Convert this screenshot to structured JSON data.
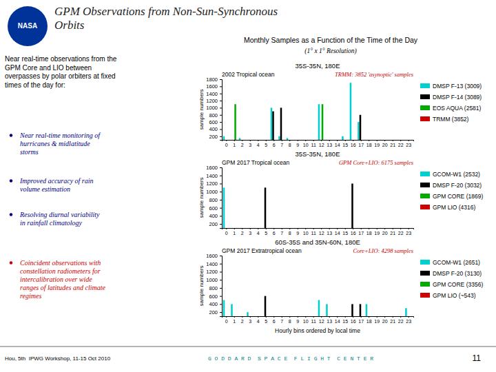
{
  "logo": {
    "text": "NASA",
    "color": "#003399"
  },
  "title": "GPM Observations from Non-Sun-Synchronous\nOrbits",
  "subtitle": "Near real-time observations from the GPM Core and LIO between overpasses by polar orbiters at fixed times of the day for:",
  "bullets": [
    {
      "text": "Near real-time monitoring of\nhurricanes & midlatitude\nstorms",
      "color": "#000080"
    },
    {
      "text": "Improved accuracy of rain\nvolume estimation",
      "color": "#000080"
    },
    {
      "text": "Resolving diurnal variability\nin rainfall climatology",
      "color": "#000080"
    },
    {
      "text": "Coincident observations with\nconstellation radiometers for\nintercalibration over wide\nranges of latitudes and climate\nregimes",
      "color": "#cc0000"
    }
  ],
  "panel_title": "Monthly Samples as a Function of the Time of the Day",
  "panel_subtitle": "(1° x 1° Resolution)",
  "footer": {
    "left": "Hou, 5th  IPWG Workshop, 11-15 Oct 2010",
    "right": "G O D D A R D  S P A C E  F L I G H T  C E N T E R",
    "right_color": "#008080",
    "slide_number": "11"
  },
  "chart_data": [
    {
      "type": "bar",
      "title": "35S-35N, 180E",
      "annotations": [
        {
          "text": "2002 Tropical ocean"
        },
        {
          "text": "TRMM: 3852 'asynoptic' samples",
          "color": "#cc0000"
        }
      ],
      "y_label": "sample numbers",
      "categories": [
        "0",
        "1",
        "2",
        "3",
        "4",
        "5",
        "6",
        "7",
        "8",
        "9",
        "10",
        "11",
        "12",
        "13",
        "14",
        "15",
        "16",
        "17",
        "18",
        "19",
        "20",
        "21",
        "22",
        "23"
      ],
      "series": [
        {
          "name": "DMSP F-13 (3009)",
          "color": "#00cfcf",
          "values": [
            200,
            100,
            150,
            100,
            100,
            100,
            1000,
            200,
            150,
            100,
            100,
            100,
            1100,
            100,
            100,
            200,
            1700,
            600,
            100,
            100,
            100,
            100,
            100,
            100
          ]
        },
        {
          "name": "DMSP F-14 (3089)",
          "color": "#000000",
          "values": [
            100,
            100,
            100,
            100,
            100,
            100,
            900,
            1000,
            100,
            100,
            100,
            100,
            100,
            100,
            100,
            100,
            100,
            800,
            100,
            100,
            100,
            100,
            100,
            100
          ]
        },
        {
          "name": "EOS AQUA (2581)",
          "color": "#00aa00",
          "values": [
            100,
            1100,
            100,
            100,
            100,
            100,
            100,
            100,
            100,
            100,
            100,
            100,
            1100,
            100,
            100,
            100,
            100,
            100,
            100,
            100,
            100,
            100,
            100,
            100
          ]
        },
        {
          "name": "TRMM (3852)",
          "color": "#cc0000",
          "values": [
            100,
            100,
            100,
            100,
            100,
            100,
            100,
            100,
            100,
            100,
            100,
            100,
            100,
            100,
            100,
            100,
            100,
            100,
            100,
            100,
            100,
            100,
            100,
            100
          ]
        }
      ],
      "ylim": [
        100,
        1800
      ],
      "yticks": [
        200,
        400,
        600,
        800,
        1000,
        1200,
        1400,
        1600,
        1800
      ],
      "grid": false
    },
    {
      "type": "bar",
      "title": "35S-35N, 180E",
      "annotations": [
        {
          "text": "GPM 2017 Tropical ocean"
        },
        {
          "text": "GPM Core+LIO: 6175 samples",
          "color": "#cc0000"
        }
      ],
      "y_label": "sample numbers",
      "categories": [
        "0",
        "1",
        "2",
        "3",
        "4",
        "5",
        "6",
        "7",
        "8",
        "9",
        "10",
        "11",
        "12",
        "13",
        "14",
        "15",
        "16",
        "17",
        "18",
        "19",
        "20",
        "21",
        "22",
        "23"
      ],
      "series": [
        {
          "name": "GCOM-W1 (2532)",
          "color": "#00cfcf",
          "values": [
            1100,
            100,
            100,
            100,
            100,
            100,
            100,
            100,
            100,
            100,
            100,
            100,
            100,
            100,
            100,
            100,
            100,
            100,
            100,
            100,
            100,
            100,
            100,
            100
          ]
        },
        {
          "name": "DMSP F-20 (3032)",
          "color": "#000000",
          "values": [
            100,
            100,
            100,
            100,
            100,
            1100,
            100,
            100,
            100,
            100,
            100,
            100,
            100,
            100,
            100,
            100,
            1200,
            100,
            100,
            100,
            100,
            100,
            100,
            100
          ]
        },
        {
          "name": "GPM CORE (1869)",
          "color": "#00aa00",
          "values": [
            100,
            100,
            100,
            100,
            100,
            100,
            100,
            100,
            100,
            100,
            100,
            100,
            100,
            100,
            100,
            100,
            100,
            100,
            100,
            100,
            100,
            100,
            100,
            100
          ]
        },
        {
          "name": "GPM LIO (4316)",
          "color": "#cc0000",
          "values": [
            100,
            100,
            100,
            100,
            100,
            100,
            100,
            100,
            100,
            100,
            100,
            100,
            100,
            100,
            100,
            100,
            100,
            100,
            100,
            100,
            100,
            100,
            100,
            100
          ]
        }
      ],
      "ylim": [
        100,
        1600
      ],
      "yticks": [
        200,
        400,
        600,
        800,
        1000,
        1200,
        1400,
        1600
      ],
      "grid": false
    },
    {
      "type": "bar",
      "title": "60S-35S and 35N-60N, 180E",
      "annotations": [
        {
          "text": "GPM 2017 Extratropical ocean"
        },
        {
          "text": "Core+LIO: 4298 samples",
          "color": "#cc0000"
        }
      ],
      "x_label": "Hourly bins ordered by local time",
      "y_label": "sample numbers",
      "categories": [
        "0",
        "1",
        "2",
        "3",
        "4",
        "5",
        "6",
        "7",
        "8",
        "9",
        "10",
        "11",
        "12",
        "13",
        "14",
        "15",
        "16",
        "17",
        "18",
        "19",
        "20",
        "21",
        "22",
        "23"
      ],
      "series": [
        {
          "name": "GCOM-W1 (2651)",
          "color": "#00cfcf",
          "values": [
            500,
            400,
            100,
            200,
            100,
            100,
            100,
            100,
            100,
            100,
            100,
            100,
            500,
            400,
            100,
            100,
            100,
            100,
            400,
            100,
            100,
            100,
            100,
            300
          ]
        },
        {
          "name": "DMSP F-20 (3130)",
          "color": "#000000",
          "values": [
            100,
            100,
            100,
            100,
            100,
            600,
            100,
            100,
            100,
            100,
            100,
            100,
            100,
            100,
            100,
            100,
            400,
            400,
            100,
            100,
            100,
            100,
            100,
            100
          ]
        },
        {
          "name": "GPM CORE (3356)",
          "color": "#00aa00",
          "values": [
            100,
            100,
            100,
            100,
            100,
            100,
            100,
            100,
            100,
            100,
            100,
            100,
            100,
            100,
            100,
            100,
            100,
            100,
            100,
            100,
            100,
            100,
            100,
            100
          ]
        },
        {
          "name": "GPM LIO (~543)",
          "color": "#cc0000",
          "values": [
            100,
            100,
            100,
            100,
            100,
            100,
            100,
            100,
            100,
            100,
            100,
            100,
            100,
            100,
            100,
            100,
            100,
            100,
            100,
            100,
            100,
            100,
            100,
            100
          ]
        }
      ],
      "ylim": [
        100,
        1600
      ],
      "yticks": [
        200,
        400,
        600,
        800,
        1000,
        1200,
        1400,
        1600
      ],
      "grid": false
    }
  ]
}
